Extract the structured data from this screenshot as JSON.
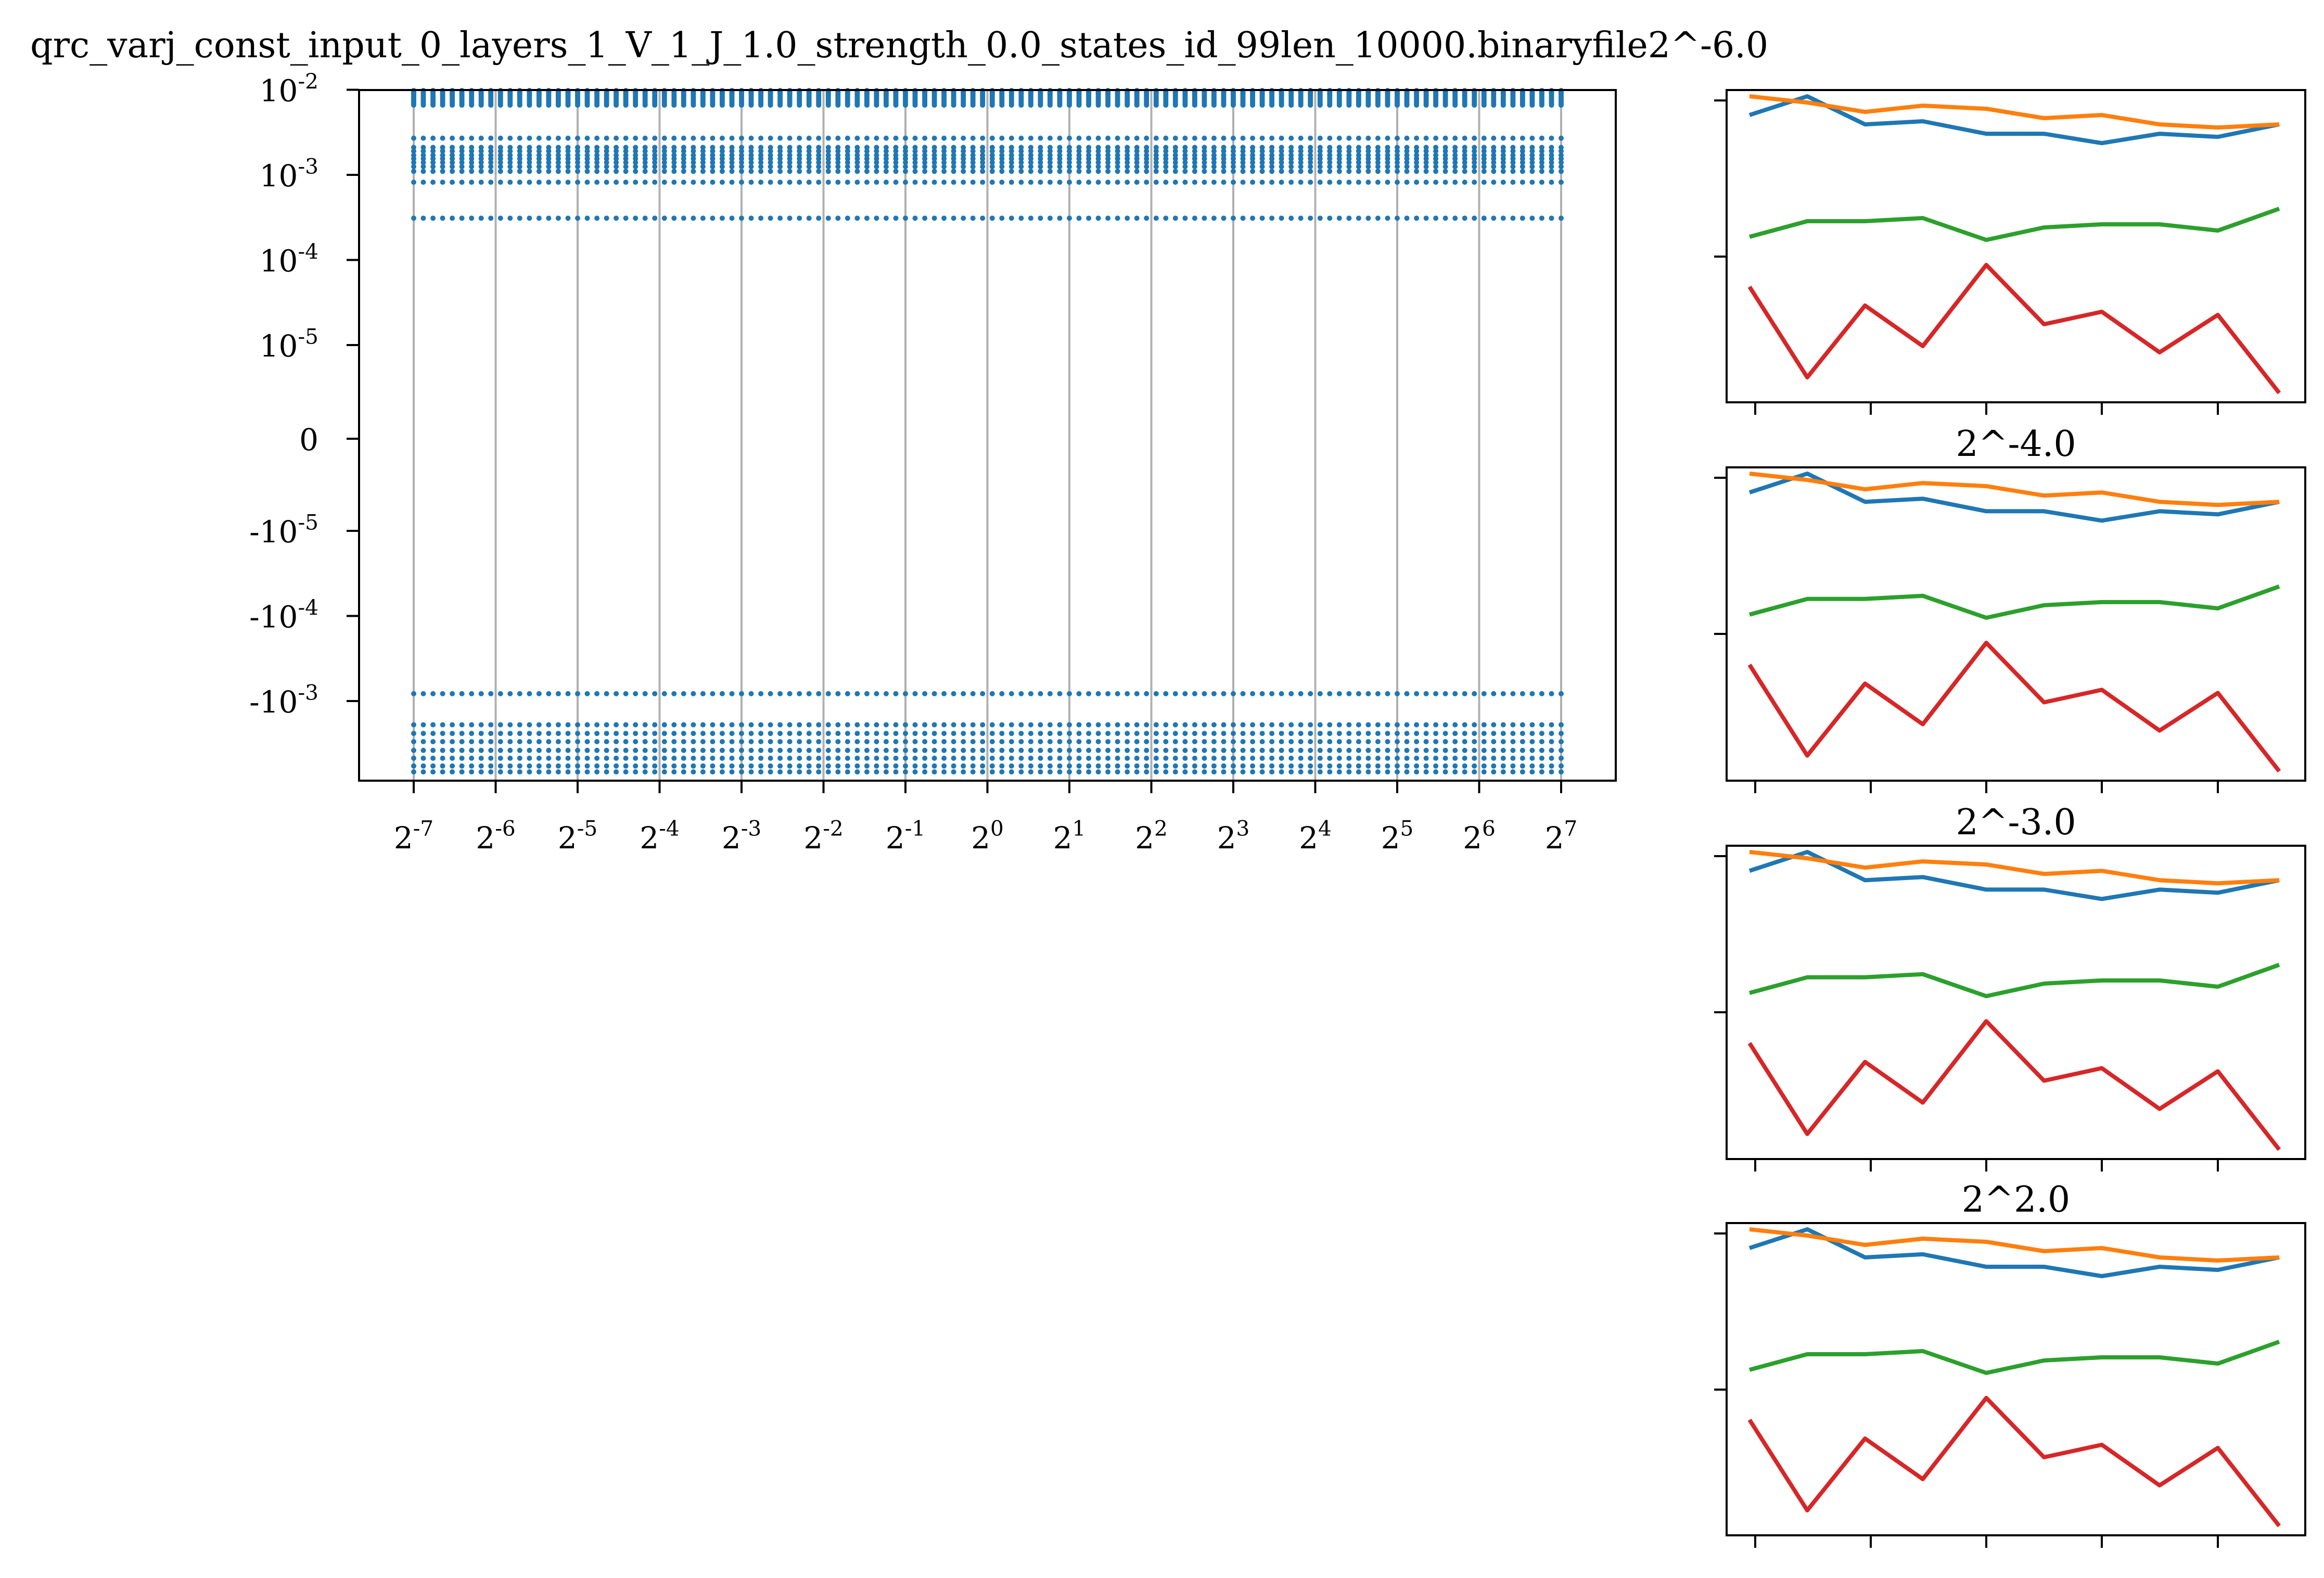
{
  "title": "qrc_varj_const_input_0_layers_1_V_1_J_1.0_strength_0.0_states_id_99len_10000.binaryfile2^-6.0",
  "colors": {
    "blue": "#1f77b4",
    "orange": "#ff7f0e",
    "green": "#2ca02c",
    "red": "#d62728",
    "grid": "#b0b0b0",
    "axis": "#000000"
  },
  "chart_data": [
    {
      "type": "scatter",
      "title": "",
      "xlabel": "",
      "ylabel": "",
      "xscale": "log2",
      "yscale": "symlog",
      "grid": "vertical",
      "x_tick_labels": [
        {
          "base": "2",
          "exp": "-7"
        },
        {
          "base": "2",
          "exp": "-6"
        },
        {
          "base": "2",
          "exp": "-5"
        },
        {
          "base": "2",
          "exp": "-4"
        },
        {
          "base": "2",
          "exp": "-3"
        },
        {
          "base": "2",
          "exp": "-2"
        },
        {
          "base": "2",
          "exp": "-1"
        },
        {
          "base": "2",
          "exp": "0"
        },
        {
          "base": "2",
          "exp": "1"
        },
        {
          "base": "2",
          "exp": "2"
        },
        {
          "base": "2",
          "exp": "3"
        },
        {
          "base": "2",
          "exp": "4"
        },
        {
          "base": "2",
          "exp": "5"
        },
        {
          "base": "2",
          "exp": "6"
        },
        {
          "base": "2",
          "exp": "7"
        }
      ],
      "y_tick_labels": [
        {
          "base": "10",
          "exp": "-2",
          "value": 0.01
        },
        {
          "base": "10",
          "exp": "-3",
          "value": 0.001
        },
        {
          "base": "10",
          "exp": "-4",
          "value": 0.0001
        },
        {
          "base": "10",
          "exp": "-5",
          "value": 1e-05
        },
        {
          "base": "0",
          "exp": "",
          "value": 0
        },
        {
          "base": "-10",
          "exp": "-5",
          "value": -1e-05
        },
        {
          "base": "-10",
          "exp": "-4",
          "value": -0.0001
        },
        {
          "base": "-10",
          "exp": "-3",
          "value": -0.001
        }
      ],
      "ylim": [
        -0.01,
        0.01
      ],
      "x_range_log2": [
        -7,
        7
      ],
      "series_levels": [
        0.0098,
        0.0095,
        0.0092,
        0.0089,
        0.0086,
        0.0083,
        0.008,
        0.0077,
        0.0074,
        0.0071,
        0.0068,
        0.0066,
        0.0027,
        0.0021,
        0.0019,
        0.0017,
        0.00155,
        0.0014,
        0.00125,
        0.0011,
        0.00082,
        0.00031,
        -0.00082,
        -0.0019,
        -0.0024,
        -0.003,
        -0.0038,
        -0.0047,
        -0.0058,
        -0.0068
      ]
    },
    {
      "type": "line",
      "title": "",
      "x": [
        0,
        1,
        2,
        3,
        4,
        5,
        6,
        7,
        8,
        9
      ],
      "series": [
        {
          "color": "orange",
          "values": [
            0.98,
            0.96,
            0.93,
            0.95,
            0.94,
            0.91,
            0.92,
            0.89,
            0.88,
            0.89
          ]
        },
        {
          "color": "blue",
          "values": [
            0.92,
            0.98,
            0.89,
            0.9,
            0.86,
            0.86,
            0.83,
            0.86,
            0.85,
            0.89
          ]
        },
        {
          "color": "green",
          "values": [
            0.53,
            0.58,
            0.58,
            0.59,
            0.52,
            0.56,
            0.57,
            0.57,
            0.55,
            0.62
          ]
        },
        {
          "color": "red",
          "values": [
            0.37,
            0.08,
            0.31,
            0.18,
            0.44,
            0.25,
            0.29,
            0.16,
            0.28,
            0.03
          ]
        }
      ]
    },
    {
      "type": "line",
      "title": "2^-4.0",
      "x": [
        0,
        1,
        2,
        3,
        4,
        5,
        6,
        7,
        8,
        9
      ],
      "series": [
        {
          "color": "orange",
          "values": [
            0.98,
            0.96,
            0.93,
            0.95,
            0.94,
            0.91,
            0.92,
            0.89,
            0.88,
            0.89
          ]
        },
        {
          "color": "blue",
          "values": [
            0.92,
            0.98,
            0.89,
            0.9,
            0.86,
            0.86,
            0.83,
            0.86,
            0.85,
            0.89
          ]
        },
        {
          "color": "green",
          "values": [
            0.53,
            0.58,
            0.58,
            0.59,
            0.52,
            0.56,
            0.57,
            0.57,
            0.55,
            0.62
          ]
        },
        {
          "color": "red",
          "values": [
            0.37,
            0.08,
            0.31,
            0.18,
            0.44,
            0.25,
            0.29,
            0.16,
            0.28,
            0.03
          ]
        }
      ]
    },
    {
      "type": "line",
      "title": "2^-3.0",
      "x": [
        0,
        1,
        2,
        3,
        4,
        5,
        6,
        7,
        8,
        9
      ],
      "series": [
        {
          "color": "orange",
          "values": [
            0.98,
            0.96,
            0.93,
            0.95,
            0.94,
            0.91,
            0.92,
            0.89,
            0.88,
            0.89
          ]
        },
        {
          "color": "blue",
          "values": [
            0.92,
            0.98,
            0.89,
            0.9,
            0.86,
            0.86,
            0.83,
            0.86,
            0.85,
            0.89
          ]
        },
        {
          "color": "green",
          "values": [
            0.53,
            0.58,
            0.58,
            0.59,
            0.52,
            0.56,
            0.57,
            0.57,
            0.55,
            0.62
          ]
        },
        {
          "color": "red",
          "values": [
            0.37,
            0.08,
            0.31,
            0.18,
            0.44,
            0.25,
            0.29,
            0.16,
            0.28,
            0.03
          ]
        }
      ]
    },
    {
      "type": "line",
      "title": "2^2.0",
      "x": [
        0,
        1,
        2,
        3,
        4,
        5,
        6,
        7,
        8,
        9
      ],
      "series": [
        {
          "color": "orange",
          "values": [
            0.98,
            0.96,
            0.93,
            0.95,
            0.94,
            0.91,
            0.92,
            0.89,
            0.88,
            0.89
          ]
        },
        {
          "color": "blue",
          "values": [
            0.92,
            0.98,
            0.89,
            0.9,
            0.86,
            0.86,
            0.83,
            0.86,
            0.85,
            0.89
          ]
        },
        {
          "color": "green",
          "values": [
            0.53,
            0.58,
            0.58,
            0.59,
            0.52,
            0.56,
            0.57,
            0.57,
            0.55,
            0.62
          ]
        },
        {
          "color": "red",
          "values": [
            0.37,
            0.08,
            0.31,
            0.18,
            0.44,
            0.25,
            0.29,
            0.16,
            0.28,
            0.03
          ]
        }
      ]
    }
  ]
}
